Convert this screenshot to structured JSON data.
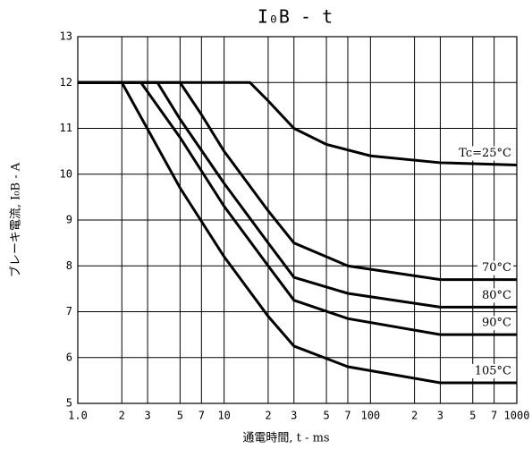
{
  "chart_data": {
    "type": "line",
    "title": "I₀B - t",
    "x_label": "通電時間, t - ms",
    "y_label": "ブレーキ電流, I₀B - A",
    "log_x": true,
    "grid": true,
    "xlim": [
      1,
      1000
    ],
    "ylim": [
      5,
      13
    ],
    "xticks": [
      {
        "value": 1,
        "label": "1.0"
      },
      2,
      3,
      5,
      7,
      10,
      {
        "value": 20,
        "label": "2"
      },
      {
        "value": 30,
        "label": "3"
      },
      {
        "value": 50,
        "label": "5"
      },
      {
        "value": 70,
        "label": "7"
      },
      100,
      {
        "value": 200,
        "label": "2"
      },
      {
        "value": 300,
        "label": "3"
      },
      {
        "value": 500,
        "label": "5"
      },
      {
        "value": 700,
        "label": "7"
      },
      1000
    ],
    "yticks": [
      5,
      6,
      7,
      8,
      9,
      10,
      11,
      12,
      13
    ],
    "series": [
      {
        "name": "Tc=25°C",
        "color": "#000000",
        "x": [
          1,
          15,
          20,
          30,
          50,
          100,
          300,
          1000
        ],
        "values": [
          12,
          12,
          11.6,
          11.0,
          10.65,
          10.4,
          10.25,
          10.2
        ]
      },
      {
        "name": "70°C",
        "color": "#000000",
        "x": [
          1,
          5,
          7,
          10,
          20,
          30,
          70,
          300,
          1000
        ],
        "values": [
          12,
          12,
          11.3,
          10.5,
          9.2,
          8.5,
          8.0,
          7.7,
          7.7
        ]
      },
      {
        "name": "80°C",
        "color": "#000000",
        "x": [
          1,
          3.5,
          5,
          10,
          20,
          30,
          70,
          300,
          1000
        ],
        "values": [
          12,
          12,
          11.2,
          9.8,
          8.5,
          7.75,
          7.4,
          7.1,
          7.1
        ]
      },
      {
        "name": "90°C",
        "color": "#000000",
        "x": [
          1,
          2.7,
          5,
          10,
          20,
          30,
          70,
          300,
          1000
        ],
        "values": [
          12,
          12,
          10.8,
          9.3,
          8.0,
          7.25,
          6.85,
          6.5,
          6.5
        ]
      },
      {
        "name": "105°C",
        "color": "#000000",
        "x": [
          1,
          2,
          5,
          10,
          20,
          30,
          70,
          300,
          1000
        ],
        "values": [
          12,
          12,
          9.7,
          8.2,
          6.9,
          6.25,
          5.8,
          5.45,
          5.45
        ]
      }
    ]
  }
}
